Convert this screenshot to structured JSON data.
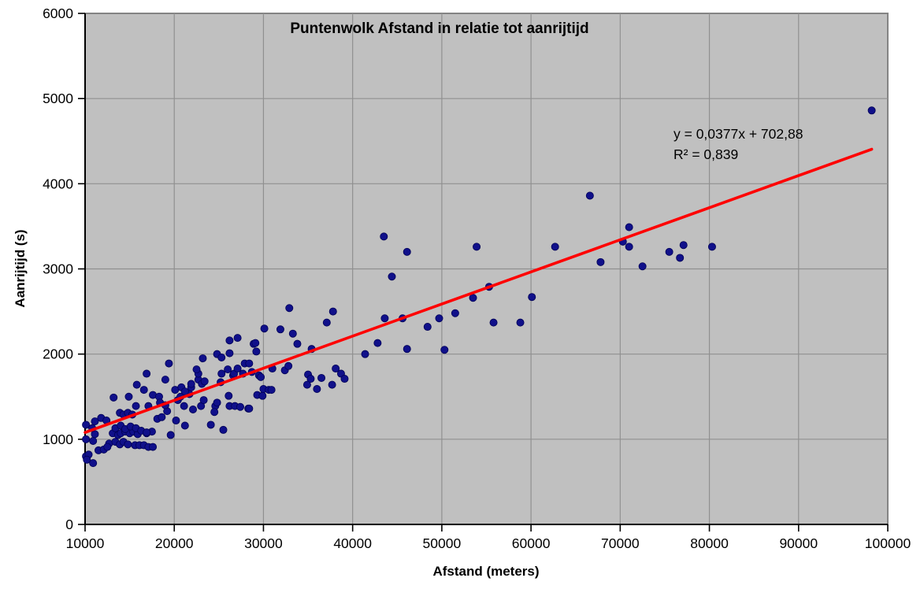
{
  "chart_data": {
    "type": "scatter",
    "title": "Puntenwolk Afstand in relatie tot aanrijtijd",
    "xlabel": "Afstand (meters)",
    "ylabel": "Aanrijtijd (s)",
    "xlim": [
      10000,
      100000
    ],
    "ylim": [
      0,
      6000
    ],
    "x_ticks": [
      10000,
      20000,
      30000,
      40000,
      50000,
      60000,
      70000,
      80000,
      90000,
      100000
    ],
    "y_ticks": [
      0,
      1000,
      2000,
      3000,
      4000,
      5000,
      6000
    ],
    "grid": true,
    "legend_position": "none",
    "trendline": {
      "type": "linear",
      "slope": 0.0377,
      "intercept": 702.88,
      "equation_label": "y = 0,0377x + 702,88",
      "r2_label": "R² = 0,839",
      "x_start": 10000,
      "x_end": 98200
    },
    "colors": {
      "page_background": "#ffffff",
      "plot_background": "#c0c0c0",
      "gridline": "#909090",
      "plot_border": "#848484",
      "axis": "#000000",
      "point_fill": "#10108a",
      "point_stroke": "#000055",
      "trendline": "#ff0000",
      "text": "#000000"
    },
    "points": [
      [
        10100,
        1000
      ],
      [
        10900,
        980
      ],
      [
        11100,
        1060
      ],
      [
        13100,
        1070
      ],
      [
        13700,
        1050
      ],
      [
        14000,
        1070
      ],
      [
        14500,
        1090
      ],
      [
        15000,
        1070
      ],
      [
        15400,
        1090
      ],
      [
        15900,
        1060
      ],
      [
        16900,
        1070
      ],
      [
        17500,
        1090
      ],
      [
        12700,
        950
      ],
      [
        13400,
        970
      ],
      [
        13900,
        940
      ],
      [
        14300,
        970
      ],
      [
        14800,
        940
      ],
      [
        11500,
        870
      ],
      [
        12100,
        880
      ],
      [
        12500,
        910
      ],
      [
        15600,
        930
      ],
      [
        16100,
        930
      ],
      [
        16600,
        930
      ],
      [
        17100,
        910
      ],
      [
        17600,
        910
      ],
      [
        10100,
        800
      ],
      [
        10400,
        820
      ],
      [
        10900,
        720
      ],
      [
        10200,
        760
      ],
      [
        19600,
        1050
      ],
      [
        10100,
        1170
      ],
      [
        10800,
        1130
      ],
      [
        11100,
        1210
      ],
      [
        11800,
        1250
      ],
      [
        12400,
        1220
      ],
      [
        13400,
        1130
      ],
      [
        14000,
        1160
      ],
      [
        14500,
        1120
      ],
      [
        15100,
        1150
      ],
      [
        15700,
        1130
      ],
      [
        16300,
        1100
      ],
      [
        16900,
        1080
      ],
      [
        13900,
        1310
      ],
      [
        14300,
        1290
      ],
      [
        14800,
        1310
      ],
      [
        15300,
        1290
      ],
      [
        18100,
        1240
      ],
      [
        18600,
        1260
      ],
      [
        19200,
        1330
      ],
      [
        13200,
        1490
      ],
      [
        14900,
        1500
      ],
      [
        15700,
        1390
      ],
      [
        17100,
        1390
      ],
      [
        16600,
        1580
      ],
      [
        17600,
        1520
      ],
      [
        18300,
        1500
      ],
      [
        18400,
        1430
      ],
      [
        19000,
        1400
      ],
      [
        15800,
        1640
      ],
      [
        16900,
        1770
      ],
      [
        19000,
        1700
      ],
      [
        20100,
        1580
      ],
      [
        20400,
        1460
      ],
      [
        20700,
        1500
      ],
      [
        21100,
        1390
      ],
      [
        21700,
        1530
      ],
      [
        22100,
        1350
      ],
      [
        23000,
        1390
      ],
      [
        23300,
        1460
      ],
      [
        24600,
        1390
      ],
      [
        24800,
        1430
      ],
      [
        26100,
        1510
      ],
      [
        26200,
        1390
      ],
      [
        26800,
        1390
      ],
      [
        24500,
        1320
      ],
      [
        28300,
        1360
      ],
      [
        20200,
        1220
      ],
      [
        21200,
        1160
      ],
      [
        24100,
        1170
      ],
      [
        25500,
        1110
      ],
      [
        27400,
        1380
      ],
      [
        28400,
        1360
      ],
      [
        20800,
        1610
      ],
      [
        21200,
        1560
      ],
      [
        21900,
        1610
      ],
      [
        21900,
        1650
      ],
      [
        22700,
        1700
      ],
      [
        23100,
        1650
      ],
      [
        22700,
        1770
      ],
      [
        23400,
        1680
      ],
      [
        23200,
        1950
      ],
      [
        22500,
        1820
      ],
      [
        25300,
        1770
      ],
      [
        25200,
        1670
      ],
      [
        26600,
        1750
      ],
      [
        27700,
        1770
      ],
      [
        26000,
        1820
      ],
      [
        26700,
        1770
      ],
      [
        29500,
        1750
      ],
      [
        29300,
        1520
      ],
      [
        29900,
        1510
      ],
      [
        30000,
        1590
      ],
      [
        30600,
        1580
      ],
      [
        30900,
        1580
      ],
      [
        27900,
        1890
      ],
      [
        28400,
        1890
      ],
      [
        27100,
        1830
      ],
      [
        28700,
        1790
      ],
      [
        29700,
        1730
      ],
      [
        19400,
        1890
      ],
      [
        24800,
        2000
      ],
      [
        25300,
        1960
      ],
      [
        26200,
        2010
      ],
      [
        26200,
        2160
      ],
      [
        27100,
        2190
      ],
      [
        28900,
        2120
      ],
      [
        29200,
        2030
      ],
      [
        29100,
        2130
      ],
      [
        30100,
        2300
      ],
      [
        31900,
        2290
      ],
      [
        33300,
        2240
      ],
      [
        33800,
        2120
      ],
      [
        35400,
        2060
      ],
      [
        32900,
        2540
      ],
      [
        37800,
        2500
      ],
      [
        37100,
        2370
      ],
      [
        31000,
        1830
      ],
      [
        32400,
        1810
      ],
      [
        32800,
        1860
      ],
      [
        35000,
        1760
      ],
      [
        35300,
        1710
      ],
      [
        36500,
        1720
      ],
      [
        38100,
        1830
      ],
      [
        38700,
        1770
      ],
      [
        39100,
        1710
      ],
      [
        34900,
        1640
      ],
      [
        36000,
        1590
      ],
      [
        37700,
        1640
      ],
      [
        42800,
        2130
      ],
      [
        43600,
        2420
      ],
      [
        45600,
        2420
      ],
      [
        46100,
        2060
      ],
      [
        41400,
        2000
      ],
      [
        48400,
        2320
      ],
      [
        49700,
        2420
      ],
      [
        50300,
        2050
      ],
      [
        51500,
        2480
      ],
      [
        43500,
        3380
      ],
      [
        46100,
        3200
      ],
      [
        44400,
        2910
      ],
      [
        53900,
        3260
      ],
      [
        55300,
        2790
      ],
      [
        53500,
        2660
      ],
      [
        55800,
        2370
      ],
      [
        58800,
        2370
      ],
      [
        60100,
        2670
      ],
      [
        62700,
        3260
      ],
      [
        66600,
        3860
      ],
      [
        67800,
        3080
      ],
      [
        70300,
        3320
      ],
      [
        71000,
        3490
      ],
      [
        71000,
        3260
      ],
      [
        72500,
        3030
      ],
      [
        75500,
        3200
      ],
      [
        77100,
        3280
      ],
      [
        76700,
        3130
      ],
      [
        80300,
        3260
      ],
      [
        98200,
        4860
      ]
    ]
  }
}
